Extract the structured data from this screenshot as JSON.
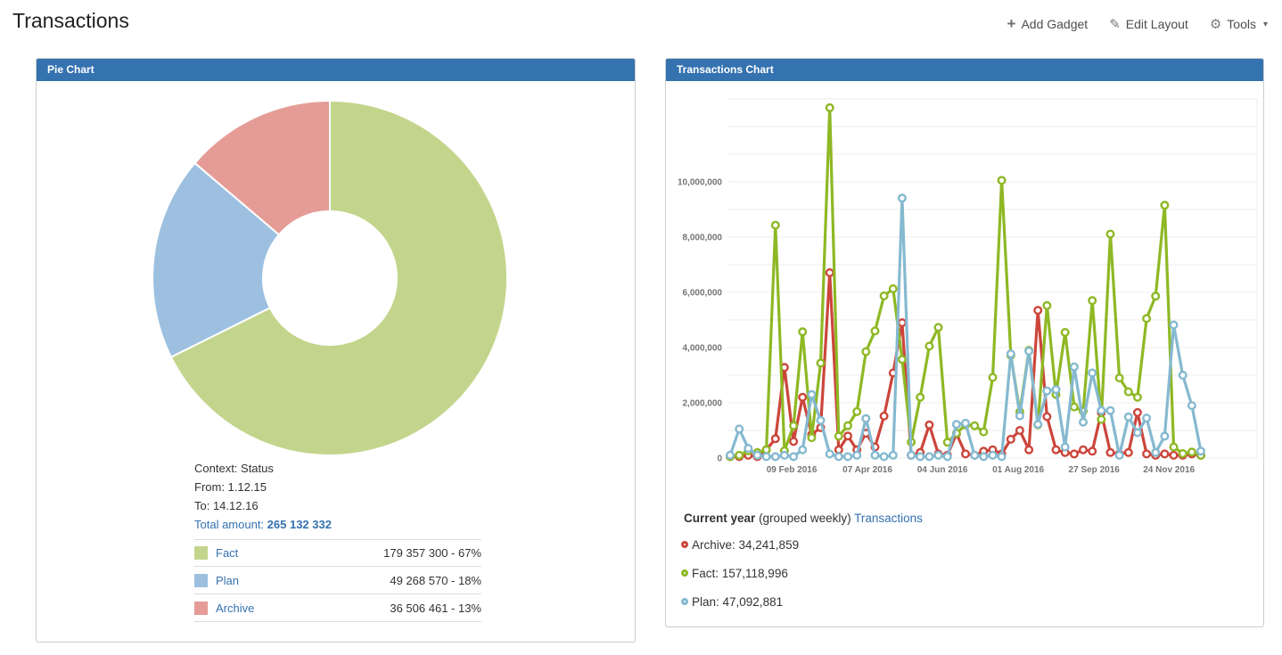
{
  "page": {
    "title": "Transactions"
  },
  "toolbar": {
    "add_gadget": "Add Gadget",
    "edit_layout": "Edit Layout",
    "tools": "Tools"
  },
  "colors": {
    "header_bg": "#3572b0",
    "link": "#3572b0",
    "grid": "#ededed",
    "axis_text": "#757575",
    "pie_fact": "#c3d58c",
    "pie_plan": "#9dc0e0",
    "pie_archive": "#e59c96",
    "line_archive": "#cc453b",
    "line_fact": "#8eb824",
    "line_plan": "#85b9d0"
  },
  "pie_gadget": {
    "title": "Pie Chart",
    "context_label": "Context: Status",
    "from_label": "From: 1.12.15",
    "to_label": "To: 14.12.16",
    "total_label": "Total amount:",
    "total_value": "265 132 332",
    "legend": [
      {
        "label": "Fact",
        "value_text": "179 357 300 - 67%",
        "color": "#c3d58c"
      },
      {
        "label": "Plan",
        "value_text": "49 268 570 - 18%",
        "color": "#9dc0e0"
      },
      {
        "label": "Archive",
        "value_text": "36 506 461 - 13%",
        "color": "#e59c96"
      }
    ]
  },
  "chart_gadget": {
    "title": "Transactions Chart",
    "caption": {
      "bold": "Current year",
      "normal": "(grouped weekly)",
      "link": "Transactions"
    },
    "legend": [
      {
        "label": "Archive: 34,241,859",
        "color": "#cc453b"
      },
      {
        "label": "Fact: 157,118,996",
        "color": "#8eb824"
      },
      {
        "label": "Plan: 47,092,881",
        "color": "#85b9d0"
      }
    ]
  },
  "chart_data": [
    {
      "type": "pie",
      "title": "Pie Chart",
      "donut": true,
      "total": 265132332,
      "slices": [
        {
          "label": "Fact",
          "value": 179357300,
          "percent": 67,
          "color": "#c3d58c"
        },
        {
          "label": "Plan",
          "value": 49268570,
          "percent": 18,
          "color": "#9dc0e0"
        },
        {
          "label": "Archive",
          "value": 36506461,
          "percent": 13,
          "color": "#e59c96"
        }
      ]
    },
    {
      "type": "line",
      "title": "Transactions Chart",
      "grouping": "weekly",
      "ylim": [
        0,
        13000000
      ],
      "y_label_step": 2000000,
      "grid_step": 1000000,
      "grid_on": true,
      "legend_position": "bottom",
      "x_ticks": [
        {
          "pos": 6.8,
          "label": "09 Feb 2016"
        },
        {
          "pos": 15.17,
          "label": "07 Apr 2016"
        },
        {
          "pos": 23.45,
          "label": "04 Jun 2016"
        },
        {
          "pos": 31.82,
          "label": "01 Aug 2016"
        },
        {
          "pos": 40.2,
          "label": "27 Sep 2016"
        },
        {
          "pos": 48.47,
          "label": "24 Nov 2016"
        }
      ],
      "series": [
        {
          "name": "Archive",
          "color": "#cc453b",
          "total": 34241859,
          "values": [
            50000,
            50000,
            100000,
            50000,
            300000,
            700000,
            3280000,
            600000,
            2200000,
            850000,
            1100000,
            6710000,
            300000,
            800000,
            300000,
            900000,
            400000,
            1520000,
            3080000,
            4900000,
            100000,
            200000,
            1200000,
            150000,
            100000,
            880000,
            150000,
            100000,
            250000,
            300000,
            150000,
            680000,
            1000000,
            300000,
            5350000,
            1500000,
            300000,
            200000,
            150000,
            300000,
            250000,
            1650000,
            200000,
            150000,
            200000,
            1650000,
            150000,
            100000,
            150000,
            100000,
            100000,
            150000,
            100000
          ]
        },
        {
          "name": "Fact",
          "color": "#8eb824",
          "total": 157118996,
          "values": [
            50000,
            100000,
            260000,
            200000,
            300000,
            8430000,
            260000,
            1170000,
            4570000,
            740000,
            3440000,
            12680000,
            790000,
            1170000,
            1680000,
            3850000,
            4600000,
            5870000,
            6130000,
            3570000,
            580000,
            2200000,
            4050000,
            4730000,
            570000,
            900000,
            1200000,
            1170000,
            950000,
            2920000,
            10050000,
            3720000,
            1670000,
            3900000,
            1200000,
            5520000,
            2300000,
            4550000,
            1850000,
            1700000,
            5700000,
            1400000,
            8110000,
            2900000,
            2400000,
            2200000,
            5050000,
            5860000,
            9150000,
            400000,
            160000,
            220000,
            100000
          ]
        },
        {
          "name": "Plan",
          "color": "#85b9d0",
          "total": 47092881,
          "values": [
            100000,
            1050000,
            350000,
            100000,
            50000,
            50000,
            100000,
            50000,
            300000,
            2300000,
            1360000,
            150000,
            50000,
            50000,
            100000,
            1430000,
            100000,
            50000,
            100000,
            9410000,
            100000,
            50000,
            50000,
            100000,
            50000,
            1220000,
            1260000,
            100000,
            50000,
            100000,
            50000,
            3770000,
            1530000,
            3870000,
            1220000,
            2430000,
            2480000,
            400000,
            3300000,
            1300000,
            3080000,
            1720000,
            1720000,
            100000,
            1490000,
            920000,
            1450000,
            200000,
            790000,
            4820000,
            3000000,
            1900000,
            250000
          ]
        }
      ]
    }
  ]
}
